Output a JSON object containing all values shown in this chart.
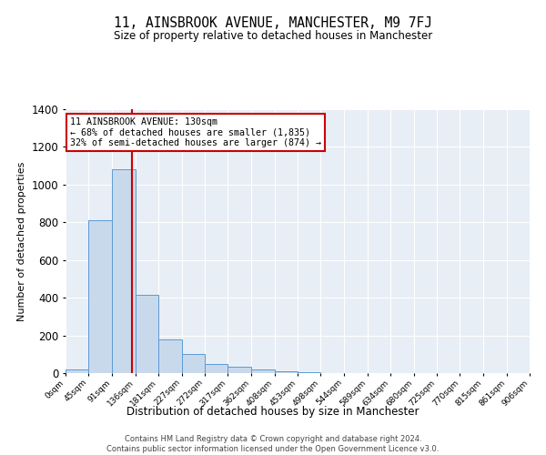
{
  "title": "11, AINSBROOK AVENUE, MANCHESTER, M9 7FJ",
  "subtitle": "Size of property relative to detached houses in Manchester",
  "xlabel": "Distribution of detached houses by size in Manchester",
  "ylabel": "Number of detached properties",
  "footer_line1": "Contains HM Land Registry data © Crown copyright and database right 2024.",
  "footer_line2": "Contains public sector information licensed under the Open Government Licence v3.0.",
  "annotation_line1": "11 AINSBROOK AVENUE: 130sqm",
  "annotation_line2": "← 68% of detached houses are smaller (1,835)",
  "annotation_line3": "32% of semi-detached houses are larger (874) →",
  "property_size": 130,
  "bin_edges": [
    0,
    45,
    91,
    136,
    181,
    227,
    272,
    317,
    362,
    408,
    453,
    498,
    544,
    589,
    634,
    680,
    725,
    770,
    815,
    861,
    906
  ],
  "bar_values": [
    20,
    810,
    1080,
    415,
    180,
    100,
    48,
    35,
    20,
    10,
    5,
    0,
    0,
    0,
    0,
    0,
    0,
    0,
    0,
    0
  ],
  "bar_color": "#c9d9ec",
  "bar_edge_color": "#5b9bd5",
  "marker_line_color": "#cc0000",
  "background_color": "#e8eef5",
  "ylim": [
    0,
    1400
  ],
  "yticks": [
    0,
    200,
    400,
    600,
    800,
    1000,
    1200,
    1400
  ]
}
